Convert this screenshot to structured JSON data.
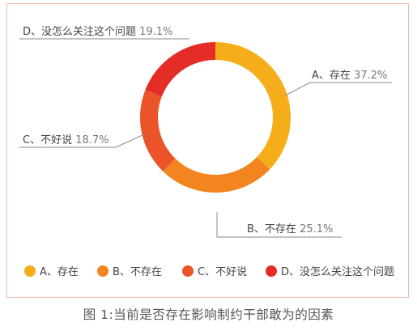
{
  "chart_data": {
    "type": "pie",
    "variant": "donut",
    "legend_position": "bottom",
    "slices": [
      {
        "letter": "A",
        "label": "A、存在",
        "value": 37.2,
        "value_text": "37.2%",
        "color": "#f5ae1a"
      },
      {
        "letter": "B",
        "label": "B、不存在",
        "value": 25.1,
        "value_text": "25.1%",
        "color": "#f38520"
      },
      {
        "letter": "C",
        "label": "C、不好说",
        "value": 18.7,
        "value_text": "18.7%",
        "color": "#eb5428"
      },
      {
        "letter": "D",
        "label": "D、没怎么关注这个问题",
        "value": 19.1,
        "value_text": "19.1%",
        "color": "#e52d28"
      }
    ]
  },
  "caption": "图 1:当前是否存在影响制约干部敢为的因素"
}
